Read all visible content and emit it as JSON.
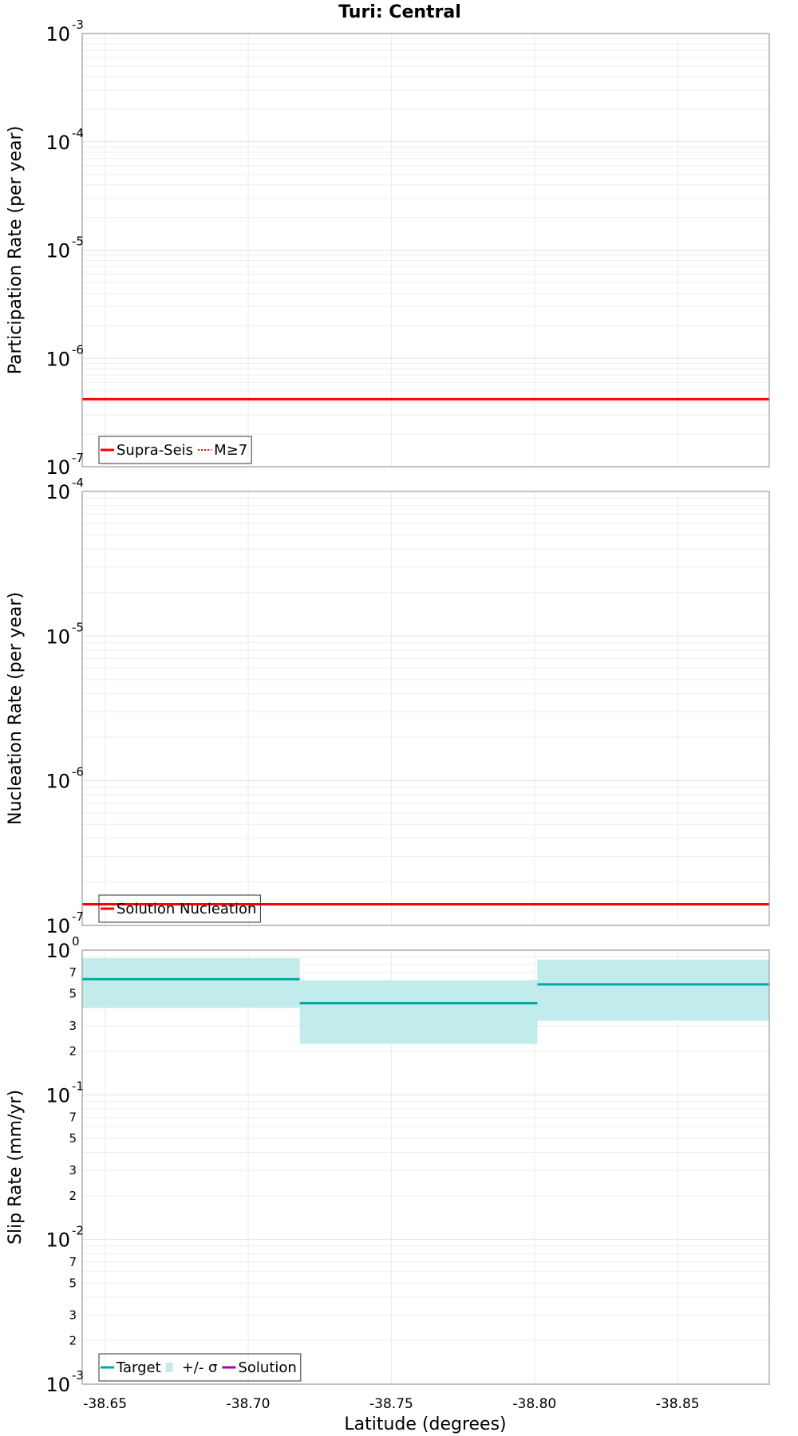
{
  "chart_data": {
    "type": "line",
    "title": "Turi: Central",
    "xlabel": "Latitude (degrees)",
    "x_ticks": [
      "-38.65",
      "-38.70",
      "-38.75",
      "-38.80",
      "-38.85"
    ],
    "xlim": [
      -38.642,
      -38.882
    ],
    "panels": [
      {
        "ylabel": "Participation Rate (per year)",
        "yscale": "log",
        "ylim_exp": [
          -7,
          -3
        ],
        "series": [
          {
            "name": "Supra-Seis",
            "style": "solid",
            "color": "#ff0000",
            "segments": [
              {
                "x0": -38.642,
                "x1": -38.882,
                "y": 4.2e-07
              }
            ]
          },
          {
            "name": "M≥7",
            "style": "dotted",
            "color": "#ff0000",
            "segments": [
              {
                "x0": -38.642,
                "x1": -38.882,
                "y": 4.2e-07
              }
            ]
          }
        ],
        "bands": [],
        "legend": [
          {
            "label": "Supra-Seis",
            "type": "line",
            "color": "#ff0000"
          },
          {
            "label": "M≥7",
            "type": "dotted",
            "color": "#ff0000"
          }
        ]
      },
      {
        "ylabel": "Nucleation Rate (per year)",
        "yscale": "log",
        "ylim_exp": [
          -7,
          -4
        ],
        "series": [
          {
            "name": "Solution Nucleation",
            "style": "solid",
            "color": "#ff0000",
            "segments": [
              {
                "x0": -38.642,
                "x1": -38.882,
                "y": 1.4e-07
              }
            ]
          }
        ],
        "bands": [],
        "legend": [
          {
            "label": "Solution Nucleation",
            "type": "line",
            "color": "#ff0000"
          }
        ]
      },
      {
        "ylabel": "Slip Rate (mm/yr)",
        "yscale": "log",
        "ylim_exp": [
          -3,
          0
        ],
        "minor_labels": [
          "2",
          "3",
          "5",
          "7"
        ],
        "series": [
          {
            "name": "Target",
            "style": "solid",
            "color": "#00aaaa",
            "segments": [
              {
                "x0": -38.642,
                "x1": -38.718,
                "y": 0.63
              },
              {
                "x0": -38.718,
                "x1": -38.801,
                "y": 0.43
              },
              {
                "x0": -38.801,
                "x1": -38.882,
                "y": 0.58
              }
            ]
          }
        ],
        "bands": [
          {
            "name": "+/- σ",
            "color": "#c2eceb",
            "segments": [
              {
                "x0": -38.642,
                "x1": -38.718,
                "y0": 0.4,
                "y1": 0.88
              },
              {
                "x0": -38.718,
                "x1": -38.801,
                "y0": 0.225,
                "y1": 0.62
              },
              {
                "x0": -38.801,
                "x1": -38.882,
                "y0": 0.325,
                "y1": 0.86
              }
            ]
          }
        ],
        "legend": [
          {
            "label": "Target",
            "type": "line",
            "color": "#00aaaa"
          },
          {
            "label": "+/- σ",
            "type": "band",
            "color": "#c2eceb"
          },
          {
            "label": "Solution",
            "type": "line",
            "color": "#aa00aa"
          }
        ]
      }
    ]
  }
}
